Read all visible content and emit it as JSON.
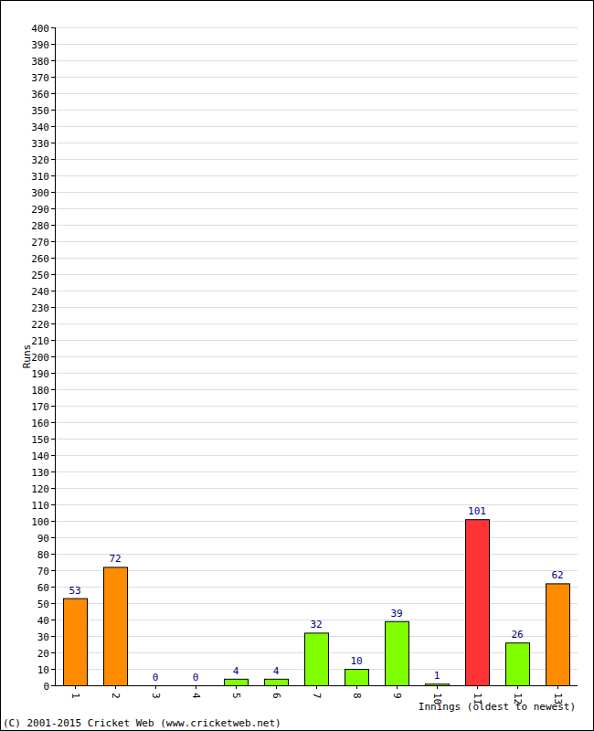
{
  "chart_data": {
    "type": "bar",
    "y_label": "Runs",
    "x_label": "Innings (oldest to newest)",
    "annotations": [
      "(C) 2001-2015 Cricket Web (www.cricketweb.net)"
    ],
    "categories": [
      "1",
      "2",
      "3",
      "4",
      "5",
      "6",
      "7",
      "8",
      "9",
      "10",
      "11",
      "12",
      "13"
    ],
    "values": [
      53,
      72,
      0,
      0,
      4,
      4,
      32,
      10,
      39,
      1,
      101,
      26,
      62
    ],
    "colors": [
      "#ff8c00",
      "#ff8c00",
      "#80ff00",
      "#80ff00",
      "#80ff00",
      "#80ff00",
      "#80ff00",
      "#80ff00",
      "#80ff00",
      "#80ff00",
      "#ff3333",
      "#80ff00",
      "#ff8c00"
    ],
    "ylim": [
      0,
      400
    ],
    "yticks": [
      0,
      10,
      20,
      30,
      40,
      50,
      60,
      70,
      80,
      90,
      100,
      110,
      120,
      130,
      140,
      150,
      160,
      170,
      180,
      190,
      200,
      210,
      220,
      230,
      240,
      250,
      260,
      270,
      280,
      290,
      300,
      310,
      320,
      330,
      340,
      350,
      360,
      370,
      380,
      390,
      400
    ],
    "grid": true,
    "data_labels": true
  }
}
